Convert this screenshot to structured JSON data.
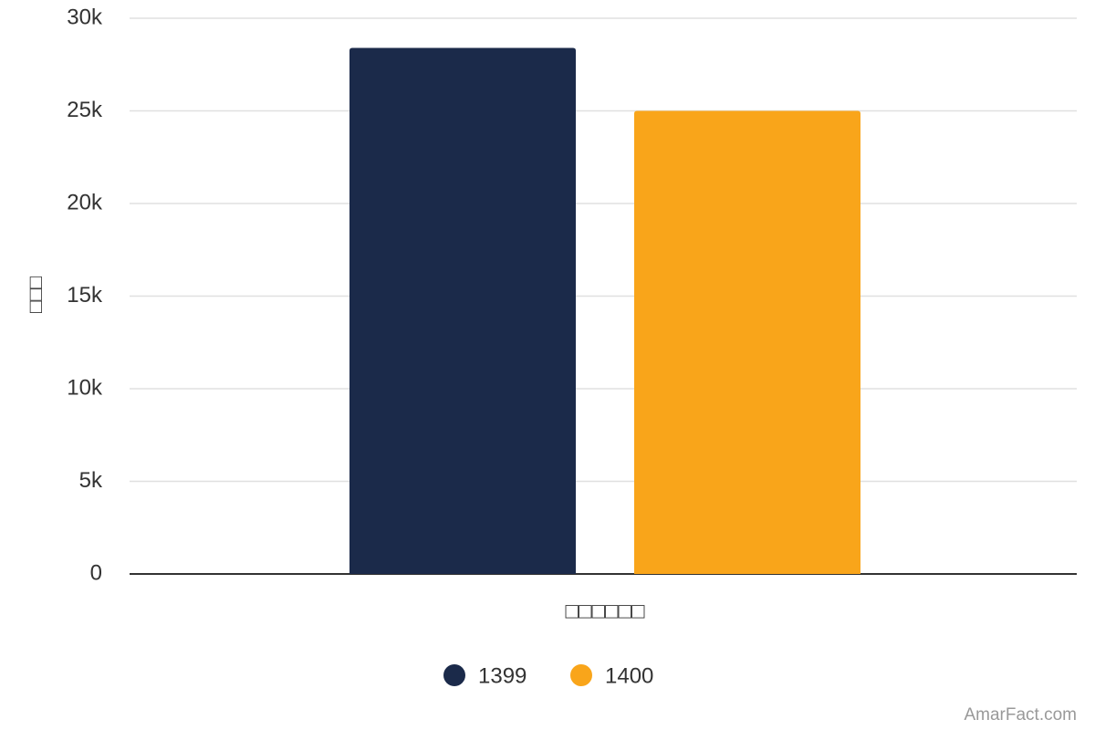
{
  "chart_data": {
    "type": "bar",
    "y_label": "□□□",
    "categories": [
      "□□□□□□"
    ],
    "series": [
      {
        "name": "1399",
        "color": "#1b2a4a",
        "values": [
          28400
        ]
      },
      {
        "name": "1400",
        "color": "#f9a51a",
        "values": [
          25000
        ]
      }
    ],
    "ylim": [
      0,
      30000
    ],
    "yticks": [
      0,
      {
        "value": 5000,
        "label": "5k"
      },
      {
        "value": 10000,
        "label": "10k"
      },
      {
        "value": 15000,
        "label": "15k"
      },
      {
        "value": 20000,
        "label": "20k"
      },
      {
        "value": 25000,
        "label": "25k"
      },
      {
        "value": 30000,
        "label": "30k"
      }
    ],
    "grid": true,
    "credit": "AmarFact.com"
  }
}
